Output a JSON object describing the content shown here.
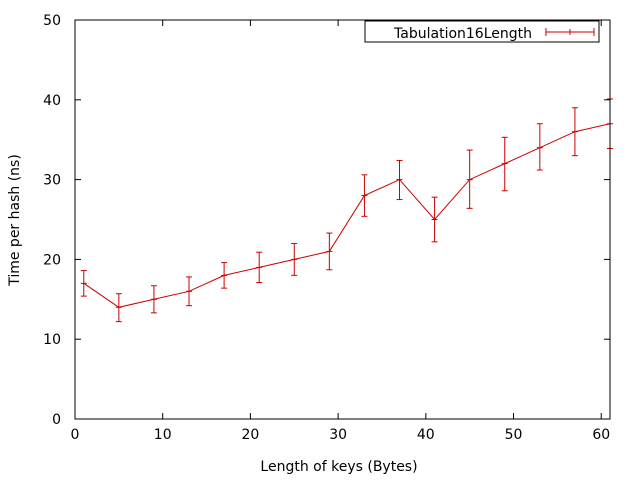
{
  "chart_data": {
    "type": "line",
    "title": "",
    "xlabel": "Length of keys (Bytes)",
    "ylabel": "Time per hash (ns)",
    "xlim": [
      0,
      61
    ],
    "ylim": [
      0,
      50
    ],
    "xticks": [
      0,
      10,
      20,
      30,
      40,
      50,
      60
    ],
    "yticks": [
      0,
      10,
      20,
      30,
      40,
      50
    ],
    "grid": false,
    "legend_position": "top-right",
    "series": [
      {
        "name": "Tabulation16Length",
        "color": "#cc0000",
        "style": "line with error bars",
        "x": [
          1,
          5,
          9,
          13,
          17,
          21,
          25,
          29,
          33,
          37,
          41,
          45,
          49,
          53,
          57,
          61
        ],
        "y": [
          17,
          14,
          15,
          16,
          18,
          19,
          20,
          21,
          28,
          30,
          25,
          30,
          32,
          34,
          36,
          37
        ],
        "y_low": [
          15.4,
          12.2,
          13.3,
          14.2,
          16.4,
          17.1,
          18.0,
          18.7,
          25.4,
          27.5,
          22.2,
          26.4,
          28.6,
          31.2,
          33.0,
          33.9
        ],
        "y_high": [
          18.6,
          15.7,
          16.7,
          17.8,
          19.6,
          20.9,
          22.0,
          23.3,
          30.6,
          32.4,
          27.8,
          33.7,
          35.3,
          37.0,
          39.0,
          40.1
        ]
      }
    ]
  }
}
